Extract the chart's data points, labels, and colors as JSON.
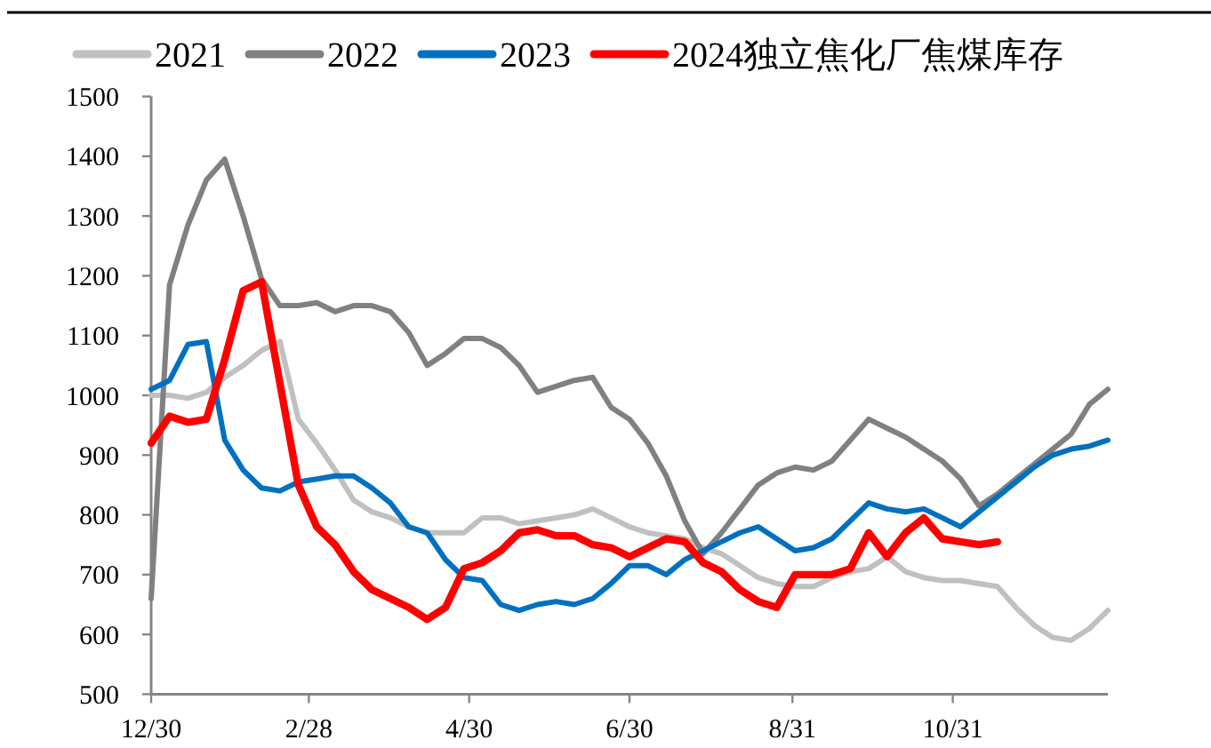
{
  "chart_data": {
    "type": "line",
    "x": [
      "2022-12-30",
      "2023-01-06",
      "2023-01-13",
      "2023-01-20",
      "2023-01-27",
      "2023-02-03",
      "2023-02-10",
      "2023-02-17",
      "2023-02-24",
      "2023-03-03",
      "2023-03-10",
      "2023-03-17",
      "2023-03-24",
      "2023-03-31",
      "2023-04-07",
      "2023-04-14",
      "2023-04-21",
      "2023-04-28",
      "2023-05-05",
      "2023-05-12",
      "2023-05-19",
      "2023-05-26",
      "2023-06-02",
      "2023-06-09",
      "2023-06-16",
      "2023-06-23",
      "2023-06-30",
      "2023-07-07",
      "2023-07-14",
      "2023-07-21",
      "2023-07-28",
      "2023-08-04",
      "2023-08-11",
      "2023-08-18",
      "2023-08-25",
      "2023-09-01",
      "2023-09-08",
      "2023-09-15",
      "2023-09-22",
      "2023-09-29",
      "2023-10-06",
      "2023-10-13",
      "2023-10-20",
      "2023-10-27",
      "2023-11-03",
      "2023-11-10",
      "2023-11-17",
      "2023-11-24",
      "2023-12-01",
      "2023-12-08",
      "2023-12-15",
      "2023-12-22",
      "2023-12-29"
    ],
    "xlim": [
      "2022-12-30",
      "2023-12-29"
    ],
    "xticks": [
      {
        "value": "2022-12-30",
        "label": "12/30"
      },
      {
        "value": "2023-02-28",
        "label": "2/28"
      },
      {
        "value": "2023-04-30",
        "label": "4/30"
      },
      {
        "value": "2023-06-30",
        "label": "6/30"
      },
      {
        "value": "2023-08-31",
        "label": "8/31"
      },
      {
        "value": "2023-10-31",
        "label": "10/31"
      }
    ],
    "ylim": [
      500,
      1500
    ],
    "yticks": [
      500,
      600,
      700,
      800,
      900,
      1000,
      1100,
      1200,
      1300,
      1400,
      1500
    ],
    "legend": "top",
    "series": [
      {
        "name": "2021",
        "color": "#c0c0c0",
        "values": [
          1000,
          1000,
          995,
          1005,
          1030,
          1050,
          1075,
          1090,
          960,
          920,
          875,
          825,
          805,
          795,
          780,
          770,
          770,
          770,
          795,
          795,
          785,
          790,
          795,
          800,
          810,
          795,
          780,
          770,
          765,
          760,
          745,
          735,
          715,
          695,
          685,
          680,
          680,
          695,
          705,
          710,
          730,
          705,
          695,
          690,
          690,
          685,
          680,
          645,
          615,
          595,
          590,
          610,
          640
        ]
      },
      {
        "name": "2022",
        "color": "#808080",
        "values": [
          660,
          1185,
          1285,
          1360,
          1395,
          1300,
          1195,
          1150,
          1150,
          1155,
          1140,
          1150,
          1150,
          1140,
          1105,
          1050,
          1070,
          1095,
          1095,
          1080,
          1050,
          1005,
          1015,
          1025,
          1030,
          980,
          960,
          920,
          865,
          790,
          735,
          770,
          810,
          850,
          870,
          880,
          875,
          890,
          925,
          960,
          945,
          930,
          910,
          890,
          860,
          815,
          835,
          860,
          885,
          910,
          935,
          985,
          1010
        ]
      },
      {
        "name": "2023",
        "color": "#0070c0",
        "values": [
          1010,
          1025,
          1085,
          1090,
          925,
          875,
          845,
          840,
          855,
          860,
          865,
          865,
          845,
          820,
          780,
          770,
          725,
          695,
          690,
          650,
          640,
          650,
          655,
          650,
          660,
          685,
          715,
          715,
          700,
          725,
          740,
          755,
          770,
          780,
          760,
          740,
          745,
          760,
          790,
          820,
          810,
          805,
          810,
          795,
          780,
          805,
          830,
          855,
          880,
          900,
          910,
          915,
          925
        ]
      },
      {
        "name": "2024独立焦化厂焦煤库存",
        "color": "#ff0000",
        "values": [
          920,
          965,
          955,
          960,
          1060,
          1175,
          1190,
          1020,
          850,
          780,
          750,
          705,
          675,
          660,
          645,
          625,
          645,
          710,
          720,
          740,
          770,
          775,
          765,
          765,
          750,
          745,
          730,
          745,
          760,
          755,
          720,
          705,
          675,
          655,
          645,
          700,
          700,
          700,
          710,
          770,
          730,
          770,
          795,
          760,
          755,
          750,
          755,
          null,
          null,
          null,
          null,
          null,
          null
        ]
      }
    ]
  }
}
